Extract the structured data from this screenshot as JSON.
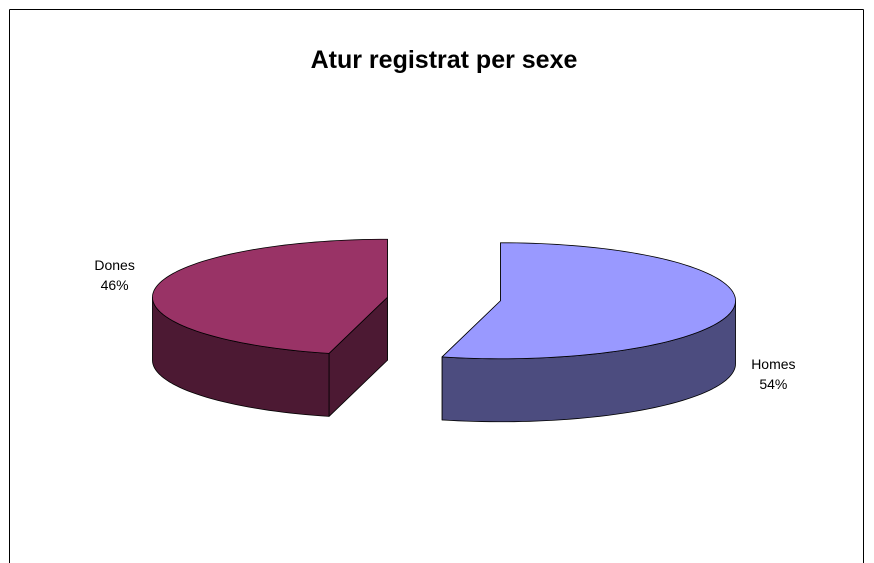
{
  "chart_data": {
    "type": "pie",
    "title": "Atur registrat per sexe",
    "categories": [
      "Homes",
      "Dones"
    ],
    "values": [
      54,
      46
    ],
    "value_labels": [
      "54%",
      "46%"
    ],
    "colors": [
      "#9999ff",
      "#993366"
    ]
  }
}
